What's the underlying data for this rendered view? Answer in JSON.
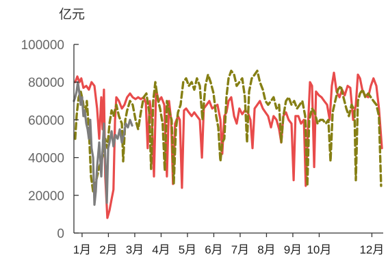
{
  "chart_data": {
    "type": "line",
    "ylabel": "亿元",
    "ylim": [
      0,
      100000
    ],
    "yticks": [
      0,
      20000,
      40000,
      60000,
      80000,
      100000
    ],
    "xlim": [
      0.69,
      12.43
    ],
    "xticks": [
      {
        "label": "1月",
        "x": 1
      },
      {
        "label": "2月",
        "x": 2
      },
      {
        "label": "3月",
        "x": 3
      },
      {
        "label": "4月",
        "x": 4
      },
      {
        "label": "5月",
        "x": 5
      },
      {
        "label": "6月",
        "x": 6
      },
      {
        "label": "7月",
        "x": 7
      },
      {
        "label": "8月",
        "x": 8
      },
      {
        "label": "9月",
        "x": 9
      },
      {
        "label": "10月",
        "x": 10
      },
      {
        "label": "12月",
        "x": 12
      }
    ],
    "grid": false,
    "series": [
      {
        "color": "#e84b4b",
        "line_style": "solid",
        "points": [
          [
            0.74,
            80000
          ],
          [
            0.82,
            83000
          ],
          [
            0.9,
            80000
          ],
          [
            0.97,
            82000
          ],
          [
            1.05,
            77000
          ],
          [
            1.16,
            78000
          ],
          [
            1.26,
            76000
          ],
          [
            1.36,
            80000
          ],
          [
            1.47,
            78000
          ],
          [
            1.57,
            66000
          ],
          [
            1.65,
            50000
          ],
          [
            1.73,
            72000
          ],
          [
            1.78,
            55000
          ],
          [
            1.83,
            76000
          ],
          [
            1.88,
            30000
          ],
          [
            1.96,
            8000
          ],
          [
            2.04,
            12000
          ],
          [
            2.12,
            18000
          ],
          [
            2.19,
            23000
          ],
          [
            2.25,
            60000
          ],
          [
            2.3,
            72000
          ],
          [
            2.4,
            70000
          ],
          [
            2.51,
            66000
          ],
          [
            2.61,
            68000
          ],
          [
            2.71,
            72000
          ],
          [
            2.82,
            74000
          ],
          [
            2.92,
            72000
          ],
          [
            3.03,
            71000
          ],
          [
            3.13,
            72000
          ],
          [
            3.23,
            71000
          ],
          [
            3.34,
            72000
          ],
          [
            3.42,
            69000
          ],
          [
            3.49,
            45000
          ],
          [
            3.57,
            70000
          ],
          [
            3.65,
            60000
          ],
          [
            3.73,
            30000
          ],
          [
            3.81,
            76000
          ],
          [
            3.91,
            70000
          ],
          [
            4.01,
            72000
          ],
          [
            4.12,
            68000
          ],
          [
            4.22,
            30000
          ],
          [
            4.3,
            70000
          ],
          [
            4.38,
            60000
          ],
          [
            4.45,
            26000
          ],
          [
            4.53,
            58000
          ],
          [
            4.64,
            62000
          ],
          [
            4.71,
            60000
          ],
          [
            4.79,
            24000
          ],
          [
            4.87,
            65000
          ],
          [
            4.95,
            66000
          ],
          [
            5.05,
            64000
          ],
          [
            5.16,
            62000
          ],
          [
            5.26,
            64000
          ],
          [
            5.36,
            62000
          ],
          [
            5.47,
            60000
          ],
          [
            5.55,
            40000
          ],
          [
            5.62,
            66000
          ],
          [
            5.73,
            68000
          ],
          [
            5.83,
            70000
          ],
          [
            5.94,
            66000
          ],
          [
            6.04,
            67000
          ],
          [
            6.14,
            68000
          ],
          [
            6.25,
            60000
          ],
          [
            6.32,
            42000
          ],
          [
            6.4,
            62000
          ],
          [
            6.48,
            64000
          ],
          [
            6.56,
            70000
          ],
          [
            6.66,
            72000
          ],
          [
            6.77,
            62000
          ],
          [
            6.87,
            58000
          ],
          [
            6.97,
            66000
          ],
          [
            7.08,
            63000
          ],
          [
            7.18,
            65000
          ],
          [
            7.29,
            64000
          ],
          [
            7.39,
            60000
          ],
          [
            7.47,
            45000
          ],
          [
            7.55,
            66000
          ],
          [
            7.65,
            68000
          ],
          [
            7.75,
            70000
          ],
          [
            7.86,
            66000
          ],
          [
            7.96,
            64000
          ],
          [
            8.06,
            62000
          ],
          [
            8.17,
            56000
          ],
          [
            8.27,
            62000
          ],
          [
            8.38,
            60000
          ],
          [
            8.48,
            55000
          ],
          [
            8.56,
            48000
          ],
          [
            8.64,
            62000
          ],
          [
            8.74,
            64000
          ],
          [
            8.84,
            60000
          ],
          [
            8.95,
            58000
          ],
          [
            9.03,
            28000
          ],
          [
            9.1,
            62000
          ],
          [
            9.21,
            62000
          ],
          [
            9.31,
            58000
          ],
          [
            9.42,
            60000
          ],
          [
            9.49,
            25000
          ],
          [
            9.57,
            55000
          ],
          [
            9.65,
            80000
          ],
          [
            9.73,
            78000
          ],
          [
            9.81,
            35000
          ],
          [
            9.88,
            75000
          ],
          [
            9.99,
            73000
          ],
          [
            10.09,
            72000
          ],
          [
            10.19,
            70000
          ],
          [
            10.3,
            68000
          ],
          [
            10.4,
            60000
          ],
          [
            10.48,
            78000
          ],
          [
            10.56,
            85000
          ],
          [
            10.66,
            75000
          ],
          [
            10.77,
            72000
          ],
          [
            10.87,
            76000
          ],
          [
            10.97,
            73000
          ],
          [
            11.08,
            78000
          ],
          [
            11.18,
            77000
          ],
          [
            11.29,
            60000
          ],
          [
            11.39,
            68000
          ],
          [
            11.47,
            84000
          ],
          [
            11.55,
            82000
          ],
          [
            11.65,
            75000
          ],
          [
            11.75,
            73000
          ],
          [
            11.86,
            72000
          ],
          [
            11.96,
            78000
          ],
          [
            12.06,
            82000
          ],
          [
            12.17,
            78000
          ],
          [
            12.27,
            66000
          ],
          [
            12.38,
            45000
          ]
        ]
      },
      {
        "color": "#857f14",
        "line_style": "dashed",
        "points": [
          [
            0.74,
            50000
          ],
          [
            0.79,
            62000
          ],
          [
            0.87,
            72000
          ],
          [
            0.95,
            75000
          ],
          [
            1.03,
            70000
          ],
          [
            1.1,
            62000
          ],
          [
            1.18,
            70000
          ],
          [
            1.26,
            55000
          ],
          [
            1.34,
            30000
          ],
          [
            1.42,
            22000
          ],
          [
            1.49,
            25000
          ],
          [
            1.57,
            30000
          ],
          [
            1.65,
            35000
          ],
          [
            1.73,
            38000
          ],
          [
            1.81,
            42000
          ],
          [
            1.88,
            50000
          ],
          [
            1.96,
            45000
          ],
          [
            2.04,
            58000
          ],
          [
            2.12,
            65000
          ],
          [
            2.19,
            62000
          ],
          [
            2.3,
            68000
          ],
          [
            2.4,
            62000
          ],
          [
            2.51,
            58000
          ],
          [
            2.56,
            38000
          ],
          [
            2.64,
            60000
          ],
          [
            2.71,
            65000
          ],
          [
            2.82,
            70000
          ],
          [
            2.92,
            68000
          ],
          [
            3.03,
            60000
          ],
          [
            3.13,
            55000
          ],
          [
            3.23,
            64000
          ],
          [
            3.34,
            72000
          ],
          [
            3.44,
            74000
          ],
          [
            3.55,
            64000
          ],
          [
            3.62,
            34000
          ],
          [
            3.7,
            70000
          ],
          [
            3.78,
            80000
          ],
          [
            3.86,
            72000
          ],
          [
            3.96,
            66000
          ],
          [
            4.06,
            58000
          ],
          [
            4.14,
            33000
          ],
          [
            4.22,
            70000
          ],
          [
            4.32,
            64000
          ],
          [
            4.4,
            60000
          ],
          [
            4.48,
            26000
          ],
          [
            4.56,
            55000
          ],
          [
            4.64,
            64000
          ],
          [
            4.74,
            68000
          ],
          [
            4.84,
            80000
          ],
          [
            4.95,
            82000
          ],
          [
            5.05,
            78000
          ],
          [
            5.16,
            80000
          ],
          [
            5.26,
            76000
          ],
          [
            5.36,
            82000
          ],
          [
            5.47,
            78000
          ],
          [
            5.57,
            60000
          ],
          [
            5.68,
            78000
          ],
          [
            5.78,
            84000
          ],
          [
            5.88,
            80000
          ],
          [
            5.99,
            74000
          ],
          [
            6.09,
            62000
          ],
          [
            6.17,
            56000
          ],
          [
            6.25,
            38000
          ],
          [
            6.32,
            48000
          ],
          [
            6.4,
            50000
          ],
          [
            6.48,
            72000
          ],
          [
            6.56,
            82000
          ],
          [
            6.66,
            86000
          ],
          [
            6.77,
            84000
          ],
          [
            6.87,
            78000
          ],
          [
            6.97,
            80000
          ],
          [
            7.08,
            82000
          ],
          [
            7.18,
            72000
          ],
          [
            7.26,
            48000
          ],
          [
            7.34,
            75000
          ],
          [
            7.44,
            82000
          ],
          [
            7.55,
            84000
          ],
          [
            7.65,
            86000
          ],
          [
            7.75,
            80000
          ],
          [
            7.86,
            76000
          ],
          [
            7.96,
            70000
          ],
          [
            8.06,
            68000
          ],
          [
            8.17,
            70000
          ],
          [
            8.27,
            72000
          ],
          [
            8.38,
            66000
          ],
          [
            8.48,
            68000
          ],
          [
            8.56,
            48000
          ],
          [
            8.64,
            62000
          ],
          [
            8.74,
            70000
          ],
          [
            8.84,
            72000
          ],
          [
            8.95,
            68000
          ],
          [
            9.05,
            70000
          ],
          [
            9.16,
            66000
          ],
          [
            9.26,
            68000
          ],
          [
            9.36,
            70000
          ],
          [
            9.47,
            62000
          ],
          [
            9.55,
            25000
          ],
          [
            9.62,
            60000
          ],
          [
            9.73,
            66000
          ],
          [
            9.83,
            64000
          ],
          [
            9.94,
            58000
          ],
          [
            10.04,
            60000
          ],
          [
            10.14,
            60000
          ],
          [
            10.25,
            58000
          ],
          [
            10.35,
            60000
          ],
          [
            10.43,
            38000
          ],
          [
            10.51,
            64000
          ],
          [
            10.61,
            70000
          ],
          [
            10.71,
            76000
          ],
          [
            10.82,
            78000
          ],
          [
            10.92,
            72000
          ],
          [
            11.03,
            66000
          ],
          [
            11.13,
            62000
          ],
          [
            11.23,
            68000
          ],
          [
            11.34,
            65000
          ],
          [
            11.39,
            28000
          ],
          [
            11.47,
            70000
          ],
          [
            11.55,
            74000
          ],
          [
            11.65,
            76000
          ],
          [
            11.75,
            72000
          ],
          [
            11.86,
            74000
          ],
          [
            11.96,
            72000
          ],
          [
            12.06,
            70000
          ],
          [
            12.17,
            68000
          ],
          [
            12.27,
            62000
          ],
          [
            12.35,
            25000
          ]
        ]
      },
      {
        "color": "#7d7d7d",
        "line_style": "solid",
        "points": [
          [
            0.69,
            70000
          ],
          [
            0.74,
            72000
          ],
          [
            0.79,
            75000
          ],
          [
            0.84,
            80000
          ],
          [
            0.9,
            74000
          ],
          [
            0.95,
            68000
          ],
          [
            1.0,
            72000
          ],
          [
            1.05,
            62000
          ],
          [
            1.1,
            65000
          ],
          [
            1.16,
            58000
          ],
          [
            1.21,
            55000
          ],
          [
            1.26,
            50000
          ],
          [
            1.31,
            60000
          ],
          [
            1.36,
            45000
          ],
          [
            1.42,
            40000
          ],
          [
            1.47,
            15000
          ],
          [
            1.52,
            22000
          ],
          [
            1.57,
            35000
          ],
          [
            1.65,
            48000
          ],
          [
            1.73,
            30000
          ],
          [
            1.78,
            45000
          ],
          [
            1.83,
            58000
          ],
          [
            1.88,
            40000
          ],
          [
            1.94,
            16000
          ],
          [
            1.99,
            45000
          ],
          [
            2.04,
            48000
          ],
          [
            2.12,
            54000
          ],
          [
            2.19,
            46000
          ],
          [
            2.27,
            52000
          ],
          [
            2.35,
            50000
          ],
          [
            2.43,
            55000
          ],
          [
            2.51,
            48000
          ],
          [
            2.58,
            52000
          ],
          [
            2.66,
            58000
          ],
          [
            2.74,
            56000
          ],
          [
            2.82,
            60000
          ],
          [
            2.9,
            57000
          ]
        ]
      }
    ]
  }
}
